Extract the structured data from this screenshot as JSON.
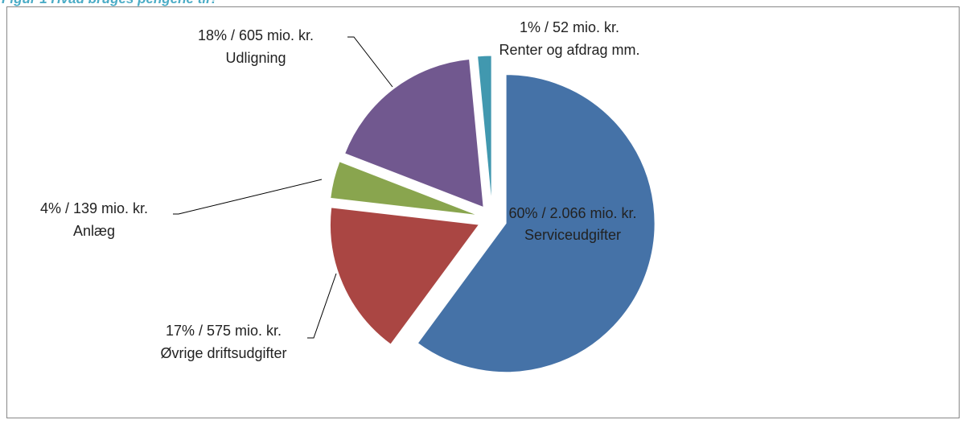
{
  "chart_data": {
    "type": "pie",
    "title": "Figur 1 Hvad bruges pengene til?",
    "categories": [
      "Serviceudgifter",
      "Øvrige driftsudgifter",
      "Anlæg",
      "Udligning",
      "Renter og afdrag mm."
    ],
    "values": [
      2066,
      575,
      139,
      605,
      52
    ],
    "value_labels": [
      "60% / 2.066 mio. kr.",
      "17% / 575 mio. kr.",
      "4% / 139 mio. kr.",
      "18% / 605 mio. kr.",
      "1% / 52 mio. kr."
    ],
    "colors": [
      "#4572a7",
      "#aa4643",
      "#89a54e",
      "#71588f",
      "#4198af"
    ]
  }
}
